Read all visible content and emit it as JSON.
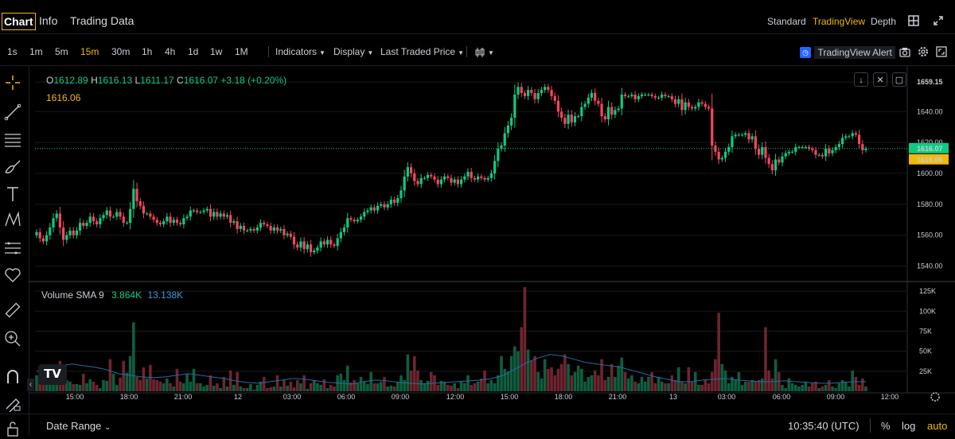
{
  "tabs": {
    "chart": "Chart",
    "info": "Info",
    "trading_data": "Trading Data"
  },
  "views": {
    "standard": "Standard",
    "tradingview": "TradingView",
    "depth": "Depth"
  },
  "intervals": [
    "1s",
    "1m",
    "5m",
    "15m",
    "30m",
    "1h",
    "4h",
    "1d",
    "1w",
    "1M"
  ],
  "active_interval": "15m",
  "toolbar": {
    "indicators": "Indicators",
    "display": "Display",
    "price_type": "Last Traded Price",
    "alert": "TradingView Alert"
  },
  "ohlc": {
    "o_key": "O",
    "o": "1612.89",
    "h_key": "H",
    "h": "1616.13",
    "l_key": "L",
    "l": "1611.17",
    "c_key": "C",
    "c": "1616.07",
    "change": "+3.18 (+0.20%)"
  },
  "crosshair_price": "1616.06",
  "volume_legend": {
    "name": "Volume SMA 9",
    "v1": "3.864K",
    "v2": "13.138K"
  },
  "price_axis": [
    "1659.15",
    "1640.00",
    "1620.00",
    "1600.00",
    "1580.00",
    "1560.00",
    "1540.00"
  ],
  "price_badges": {
    "last": "1616.07",
    "cross": "1616.06"
  },
  "volume_axis": [
    "125K",
    "100K",
    "75K",
    "50K",
    "25K"
  ],
  "time_axis": [
    "15:00",
    "18:00",
    "21:00",
    "12",
    "03:00",
    "06:00",
    "09:00",
    "12:00",
    "15:00",
    "18:00",
    "21:00",
    "13",
    "03:00",
    "06:00",
    "09:00",
    "12:00"
  ],
  "bottom": {
    "date_range": "Date Range",
    "clock": "10:35:40 (UTC)",
    "percent": "%",
    "log": "log",
    "auto": "auto"
  },
  "colors": {
    "up": "#0ecb81",
    "down": "#f6465d",
    "accent": "#f0b90b",
    "sma": "#1e6fa8"
  },
  "chart_data": {
    "type": "candlestick",
    "price_range": [
      1530,
      1670
    ],
    "volume_range": [
      0,
      135000
    ],
    "closes": [
      1562,
      1558,
      1556,
      1560,
      1565,
      1571,
      1574,
      1565,
      1557,
      1560,
      1563,
      1560,
      1563,
      1568,
      1566,
      1568,
      1572,
      1569,
      1567,
      1571,
      1573,
      1576,
      1572,
      1572,
      1575,
      1572,
      1568,
      1568,
      1577,
      1590,
      1582,
      1579,
      1574,
      1574,
      1572,
      1570,
      1568,
      1567,
      1569,
      1572,
      1568,
      1570,
      1568,
      1567,
      1571,
      1572,
      1576,
      1576,
      1575,
      1575,
      1576,
      1577,
      1572,
      1575,
      1572,
      1574,
      1572,
      1573,
      1568,
      1569,
      1564,
      1566,
      1563,
      1563,
      1564,
      1563,
      1565,
      1568,
      1567,
      1566,
      1563,
      1565,
      1563,
      1564,
      1560,
      1561,
      1559,
      1554,
      1552,
      1556,
      1551,
      1554,
      1549,
      1550,
      1552,
      1556,
      1554,
      1557,
      1554,
      1553,
      1558,
      1562,
      1565,
      1571,
      1570,
      1569,
      1570,
      1572,
      1575,
      1576,
      1578,
      1576,
      1579,
      1580,
      1578,
      1580,
      1583,
      1581,
      1584,
      1589,
      1598,
      1604,
      1600,
      1595,
      1593,
      1597,
      1597,
      1599,
      1598,
      1596,
      1593,
      1596,
      1598,
      1597,
      1594,
      1596,
      1593,
      1596,
      1598,
      1601,
      1597,
      1596,
      1598,
      1597,
      1596,
      1597,
      1600,
      1608,
      1616,
      1618,
      1626,
      1631,
      1636,
      1651,
      1656,
      1652,
      1650,
      1654,
      1652,
      1648,
      1652,
      1654,
      1656,
      1654,
      1650,
      1647,
      1640,
      1636,
      1632,
      1638,
      1633,
      1637,
      1637,
      1643,
      1645,
      1649,
      1652,
      1647,
      1645,
      1637,
      1635,
      1643,
      1638,
      1641,
      1642,
      1651,
      1650,
      1650,
      1651,
      1648,
      1650,
      1651,
      1651,
      1651,
      1650,
      1649,
      1649,
      1651,
      1650,
      1650,
      1648,
      1645,
      1648,
      1641,
      1646,
      1643,
      1642,
      1643,
      1646,
      1645,
      1643,
      1642,
      1618,
      1614,
      1609,
      1610,
      1614,
      1617,
      1624,
      1625,
      1625,
      1625,
      1626,
      1622,
      1624,
      1616,
      1612,
      1617,
      1610,
      1606,
      1602,
      1609,
      1607,
      1611,
      1613,
      1614,
      1614,
      1617,
      1617,
      1617,
      1617,
      1616,
      1615,
      1612,
      1612,
      1611,
      1616,
      1613,
      1615,
      1617,
      1619,
      1623,
      1624,
      1624,
      1626,
      1625,
      1619,
      1615,
      1616
    ],
    "volumes": [
      20000,
      12000,
      30000,
      22000,
      25000,
      18000,
      10000,
      38000,
      24000,
      14000,
      12000,
      9000,
      9000,
      8000,
      22000,
      10000,
      15000,
      12000,
      8000,
      4000,
      14000,
      13000,
      40000,
      22000,
      8000,
      17000,
      38000,
      23000,
      44000,
      86000,
      18000,
      14000,
      30000,
      16000,
      33000,
      15000,
      14000,
      12000,
      10000,
      16000,
      10000,
      6000,
      28000,
      12000,
      10000,
      22000,
      12000,
      28000,
      10000,
      10000,
      6000,
      8000,
      20000,
      7000,
      10000,
      4000,
      18000,
      6000,
      26000,
      8000,
      24000,
      6000,
      4000,
      4000,
      9000,
      2000,
      8000,
      12000,
      18000,
      4000,
      5000,
      6000,
      20000,
      6000,
      14000,
      7000,
      12000,
      5000,
      14000,
      10000,
      20000,
      3000,
      10000,
      14000,
      10000,
      8000,
      15000,
      4000,
      8000,
      6000,
      20000,
      22000,
      14000,
      32000,
      11000,
      14000,
      10000,
      18000,
      12000,
      9000,
      24000,
      10000,
      10000,
      12000,
      18000,
      6000,
      7000,
      6000,
      12000,
      20000,
      14000,
      46000,
      26000,
      44000,
      26000,
      14000,
      10000,
      13000,
      24000,
      20000,
      8000,
      13000,
      12000,
      8000,
      7000,
      10000,
      4000,
      12000,
      10000,
      20000,
      8000,
      10000,
      12000,
      16000,
      26000,
      10000,
      14000,
      10000,
      20000,
      44000,
      28000,
      25000,
      44000,
      56000,
      50000,
      80000,
      130000,
      52000,
      38000,
      44000,
      24000,
      16000,
      40000,
      28000,
      30000,
      20000,
      28000,
      34000,
      46000,
      34000,
      20000,
      24000,
      32000,
      28000,
      12000,
      18000,
      20000,
      26000,
      20000,
      40000,
      14000,
      18000,
      34000,
      18000,
      32000,
      42000,
      24000,
      16000,
      20000,
      12000,
      10000,
      18000,
      12000,
      18000,
      24000,
      10000,
      18000,
      12000,
      10000,
      10000,
      20000,
      14000,
      30000,
      12000,
      10000,
      30000,
      12000,
      24000,
      8000,
      8000,
      14000,
      10000,
      24000,
      40000,
      98000,
      34000,
      26000,
      10000,
      18000,
      14000,
      24000,
      8000,
      12000,
      12000,
      14000,
      12000,
      14000,
      16000,
      80000,
      26000,
      16000,
      40000,
      24000,
      8000,
      4000,
      16000,
      10000,
      8000,
      6000,
      8000,
      12000,
      6000,
      10000,
      12000,
      4000,
      6000,
      8000,
      14000,
      6000,
      4000,
      10000,
      14000,
      12000,
      6000,
      26000,
      18000,
      8000,
      16000,
      6000
    ],
    "sma": [
      25000,
      28000,
      32000,
      34000,
      32000,
      30000,
      27000,
      22000,
      20000,
      18000,
      17000,
      18000,
      20000,
      22000,
      20000,
      18000,
      16000,
      13000,
      11000,
      10000,
      12000,
      14000,
      16000,
      15000,
      13000,
      11000,
      10000,
      9000,
      12000,
      14000,
      13000,
      11000,
      10000,
      9000,
      10000,
      11000,
      12000,
      13000,
      14000,
      16000,
      20000,
      28000,
      36000,
      42000,
      46000,
      44000,
      40000,
      36000,
      34000,
      32000,
      30000,
      26000,
      22000,
      18000,
      15000,
      12000,
      12000,
      14000,
      15000,
      16000,
      14000,
      13000,
      12000,
      12000,
      13000,
      12000,
      11000,
      10000,
      10000,
      11000,
      12000,
      12000
    ]
  }
}
